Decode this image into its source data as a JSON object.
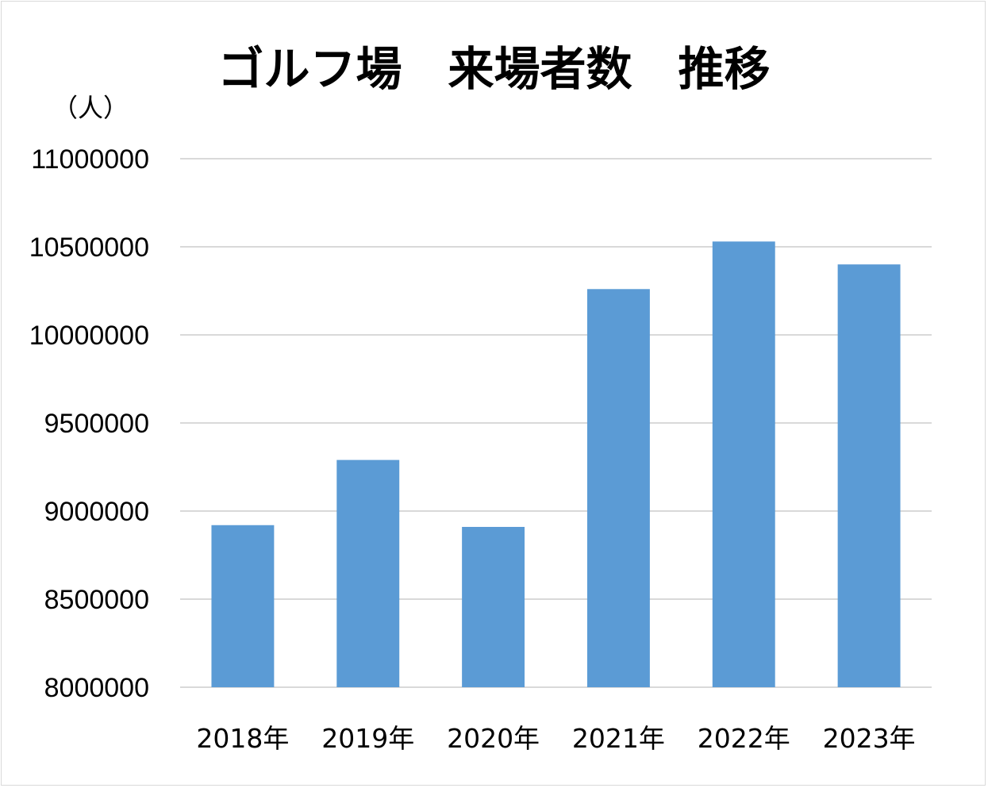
{
  "chart_data": {
    "type": "bar",
    "title": "ゴルフ場　来場者数　推移",
    "unit_label": "（人）",
    "categories": [
      "2018年",
      "2019年",
      "2020年",
      "2021年",
      "2022年",
      "2023年"
    ],
    "values": [
      8920000,
      9290000,
      8910000,
      10260000,
      10530000,
      10400000
    ],
    "ylim": [
      8000000,
      11000000
    ],
    "yticks": [
      8000000,
      8500000,
      9000000,
      9500000,
      10000000,
      10500000,
      11000000
    ],
    "grid": true,
    "legend": "none",
    "bar_color": "#5b9bd5",
    "grid_color": "#d9d9d9"
  }
}
